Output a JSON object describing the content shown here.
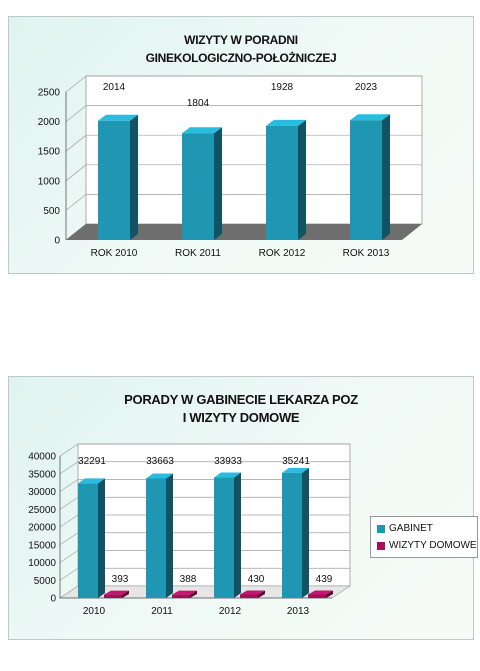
{
  "chart_data": [
    {
      "type": "bar",
      "title_lines": [
        "WIZYTY W PORADNI",
        "GINEKOLOGICZNO-POŁOŻNICZEJ"
      ],
      "categories": [
        "ROK 2010",
        "ROK 2011",
        "ROK 2012",
        "ROK 2013"
      ],
      "values": [
        2014,
        1804,
        1928,
        2023
      ],
      "data_labels": [
        "2014",
        "1804",
        "1928",
        "2023"
      ],
      "ylim": [
        0,
        2500
      ],
      "yticks": [
        "0",
        "500",
        "1000",
        "1500",
        "2000",
        "2500"
      ],
      "color": "#1f97b3",
      "grid": true
    },
    {
      "type": "bar",
      "title_lines": [
        "PORADY W GABINECIE LEKARZA POZ",
        "I WIZYTY DOMOWE"
      ],
      "categories": [
        "2010",
        "2011",
        "2012",
        "2013"
      ],
      "series": [
        {
          "name": "GABINET",
          "values": [
            32291,
            33663,
            33933,
            35241
          ],
          "labels": [
            "32291",
            "33663",
            "33933",
            "35241"
          ],
          "color": "#1f97b3"
        },
        {
          "name": "WIZYTY DOMOWE",
          "values": [
            393,
            388,
            430,
            439
          ],
          "labels": [
            "393",
            "388",
            "430",
            "439"
          ],
          "color": "#a0115a"
        }
      ],
      "ylim": [
        0,
        40000
      ],
      "yticks": [
        "0",
        "5000",
        "10000",
        "15000",
        "20000",
        "25000",
        "30000",
        "35000",
        "40000"
      ],
      "legend_position": "right",
      "grid": true
    }
  ]
}
